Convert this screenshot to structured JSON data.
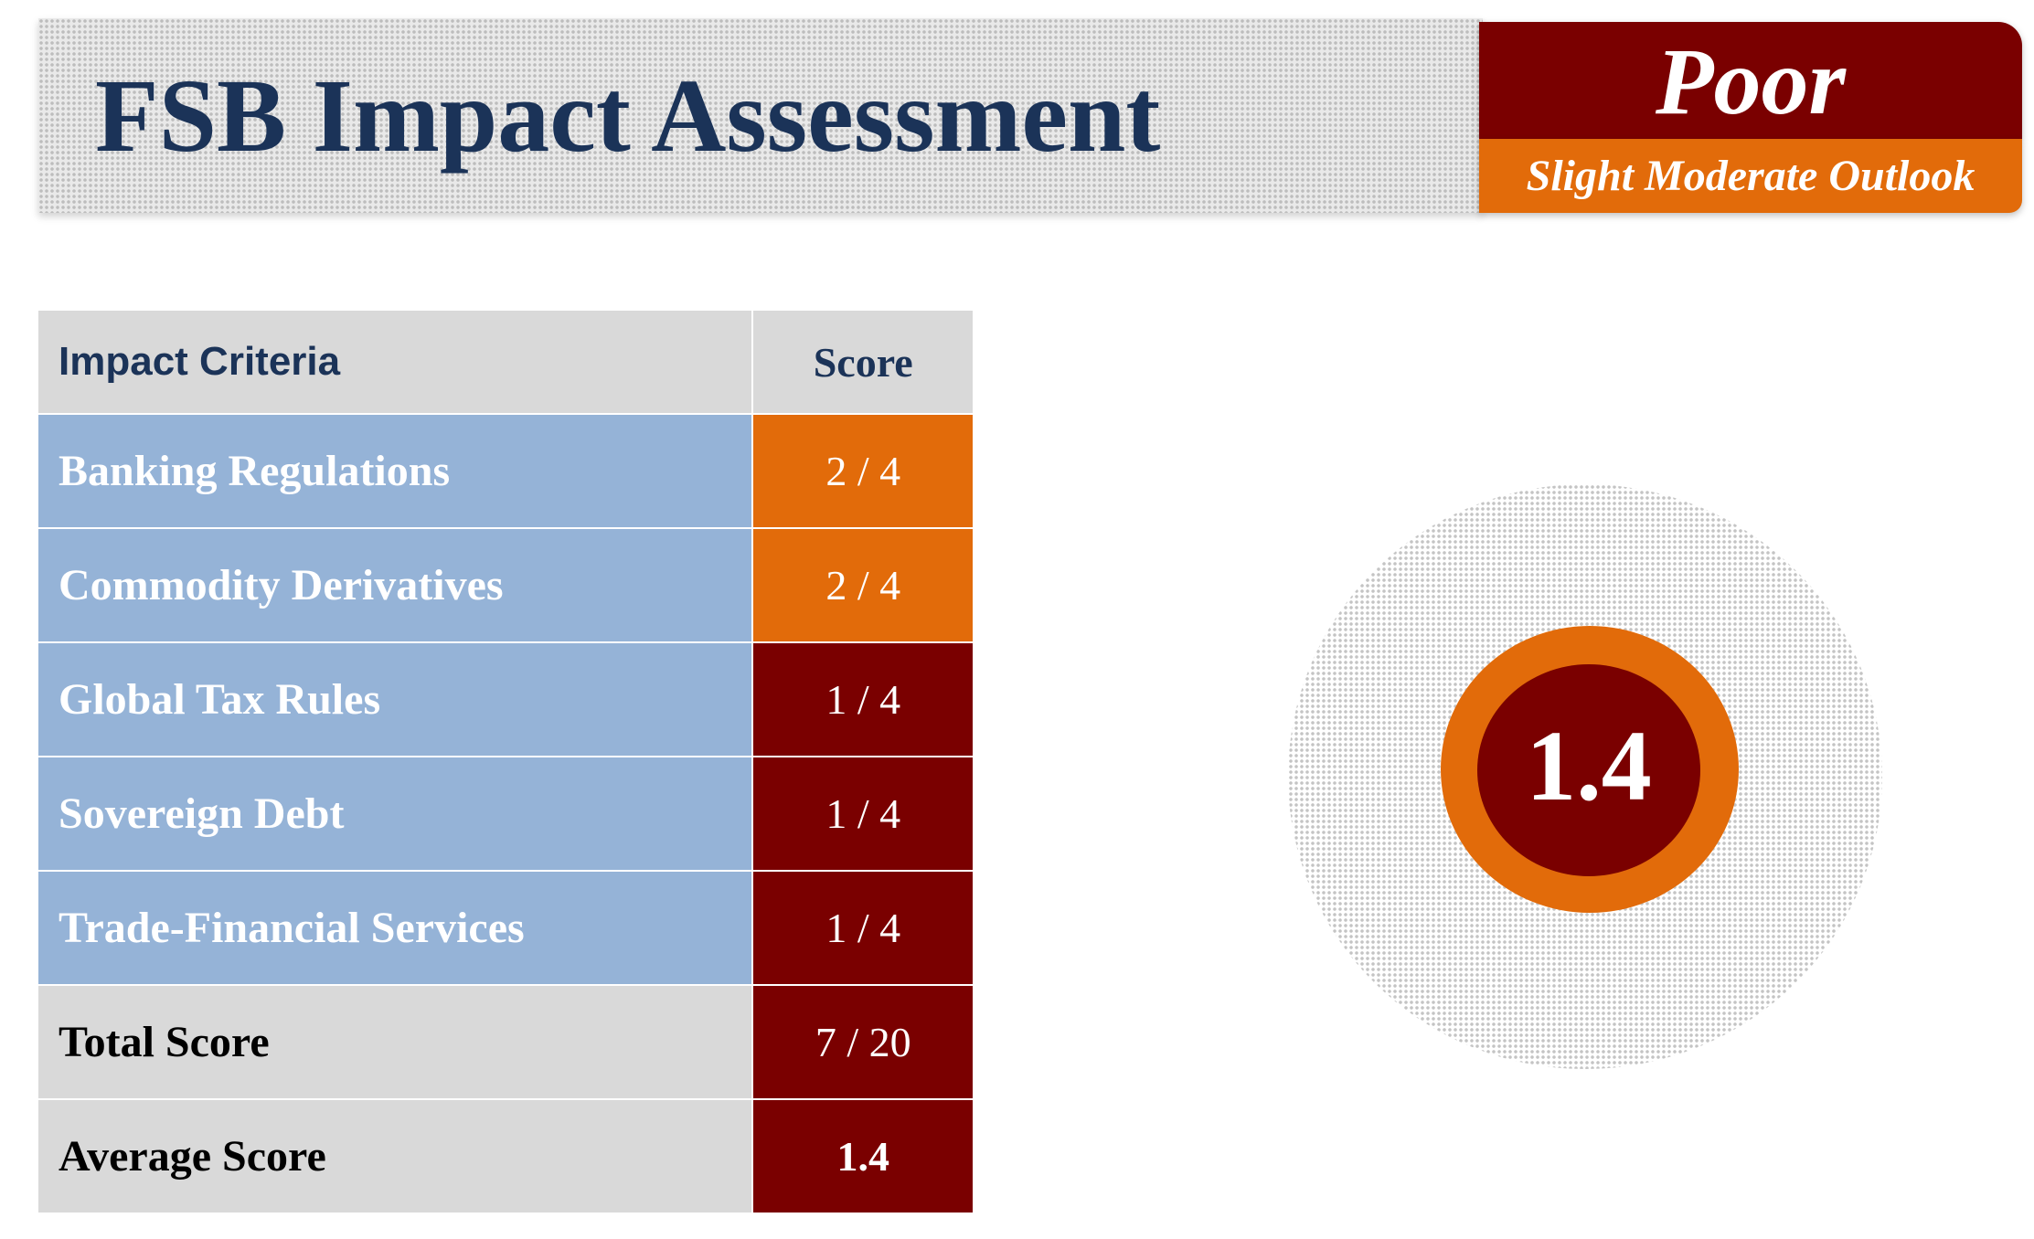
{
  "header": {
    "title": "FSB Impact Assessment",
    "rating": "Poor",
    "outlook": "Slight Moderate Outlook"
  },
  "table": {
    "columns": [
      "Impact Criteria",
      "Score"
    ],
    "rows": [
      {
        "criteria": "Banking Regulations",
        "score": "2 / 4",
        "color": "#e26b0a"
      },
      {
        "criteria": "Commodity Derivatives",
        "score": "2 / 4",
        "color": "#e26b0a"
      },
      {
        "criteria": "Global Tax Rules",
        "score": "1 / 4",
        "color": "#7a0000"
      },
      {
        "criteria": "Sovereign Debt",
        "score": "1 / 4",
        "color": "#7a0000"
      },
      {
        "criteria": "Trade-Financial Services",
        "score": "1 / 4",
        "color": "#7a0000"
      }
    ],
    "total": {
      "label": "Total Score",
      "score": "7 / 20"
    },
    "average": {
      "label": "Average Score",
      "score": "1.4"
    }
  },
  "gauge": {
    "value": "1.4"
  },
  "colors": {
    "navy": "#1b3358",
    "dark_red": "#7a0000",
    "orange": "#e26b0a",
    "steel_blue": "#95b3d7",
    "light_gray": "#d9d9d9"
  }
}
